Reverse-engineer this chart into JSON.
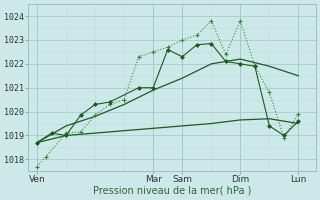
{
  "background_color": "#cce8e8",
  "grid_color_major": "#aacccc",
  "grid_color_minor": "#bbdcdc",
  "line_color_dark": "#1a5c1a",
  "line_color_light": "#2e8b2e",
  "xlabel": "Pression niveau de la mer( hPa )",
  "ylim": [
    1017.5,
    1024.5
  ],
  "yticks": [
    1018,
    1019,
    1020,
    1021,
    1022,
    1023,
    1024
  ],
  "day_labels": [
    "Ven",
    "Mar",
    "Sam",
    "Dim",
    "Lun"
  ],
  "day_positions": [
    0.0,
    4.0,
    5.0,
    7.0,
    9.0
  ],
  "xmin": -0.3,
  "xmax": 9.6,
  "series1_dotted_plus": {
    "x": [
      0.0,
      0.3,
      1.0,
      1.5,
      2.0,
      2.5,
      3.0,
      3.5,
      4.0,
      4.5,
      5.0,
      5.5,
      6.0,
      6.5,
      7.0,
      7.5,
      8.0,
      8.5,
      9.0
    ],
    "y": [
      1017.7,
      1018.1,
      1019.1,
      1019.15,
      1019.85,
      1020.3,
      1020.5,
      1022.3,
      1022.5,
      1022.7,
      1023.0,
      1023.2,
      1023.8,
      1022.4,
      1023.8,
      1021.9,
      1020.8,
      1018.9,
      1019.9
    ]
  },
  "series2_dashed_diamond": {
    "x": [
      0.0,
      0.5,
      1.0,
      1.5,
      2.0,
      2.5,
      3.5,
      4.0,
      4.5,
      5.0,
      5.5,
      6.0,
      6.5,
      7.0,
      7.5,
      8.0,
      8.5,
      9.0
    ],
    "y": [
      1018.7,
      1019.1,
      1019.0,
      1019.85,
      1020.3,
      1020.4,
      1021.0,
      1021.0,
      1022.6,
      1022.3,
      1022.8,
      1022.85,
      1022.1,
      1022.0,
      1021.9,
      1019.4,
      1019.0,
      1019.6
    ]
  },
  "series3_solid_flat": {
    "x": [
      0.0,
      1.0,
      2.0,
      3.0,
      4.0,
      5.0,
      6.0,
      7.0,
      8.0,
      9.0
    ],
    "y": [
      1018.7,
      1019.0,
      1019.1,
      1019.2,
      1019.3,
      1019.4,
      1019.5,
      1019.65,
      1019.7,
      1019.5
    ]
  },
  "series4_solid_rising": {
    "x": [
      0.0,
      1.0,
      2.0,
      3.0,
      4.0,
      5.0,
      6.0,
      7.0,
      8.0,
      9.0
    ],
    "y": [
      1018.7,
      1019.4,
      1019.8,
      1020.3,
      1020.9,
      1021.4,
      1022.0,
      1022.2,
      1021.9,
      1021.5
    ]
  }
}
